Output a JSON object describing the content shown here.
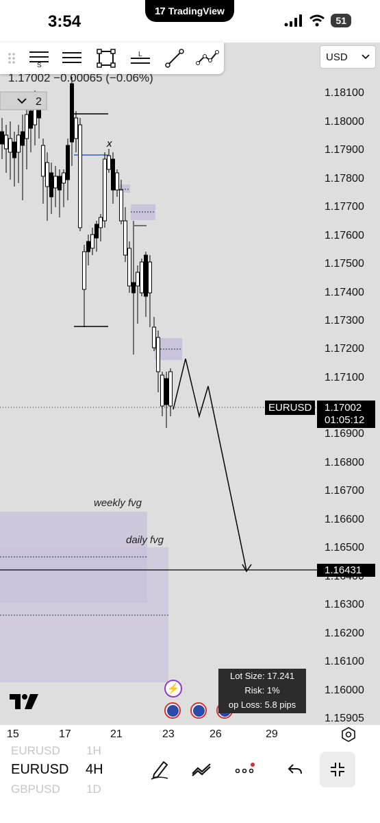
{
  "status_bar": {
    "time": "3:54",
    "app_pill": "TradingView",
    "battery": "51"
  },
  "toolbar": {
    "tools": [
      "drag-handle-icon",
      "s-levels-icon",
      "lines-icon",
      "rectangle-icon",
      "l-levels-icon",
      "trendline-icon",
      "path-icon"
    ]
  },
  "currency_select": {
    "value": "USD"
  },
  "legend": {
    "ohlc_text": "1.17002 −0.00065 (−0.06%)",
    "collapse_count": "2"
  },
  "price_axis": {
    "labels": [
      "1.18100",
      "1.18000",
      "1.17900",
      "1.17800",
      "1.17700",
      "1.17600",
      "1.17500",
      "1.17400",
      "1.17300",
      "1.17200",
      "1.17100",
      "1.16900",
      "1.16800",
      "1.16700",
      "1.16600",
      "1.16500",
      "1.16400",
      "1.16300",
      "1.16200",
      "1.16100",
      "1.16000",
      "1.15905"
    ]
  },
  "current_price": {
    "symbol": "EURUSD",
    "price": "1.17002",
    "countdown": "01:05:12"
  },
  "target_price": {
    "price": "1.16431"
  },
  "annotations": {
    "x_mark": "x",
    "weekly_fvg": "weekly fvg",
    "daily_fvg": "daily fvg"
  },
  "position_box": {
    "lot_size": "Lot Size: 17.241",
    "risk": "Risk: 1%",
    "stop_loss": "op Loss: 5.8 pips"
  },
  "date_axis": {
    "labels": [
      "15",
      "17",
      "21",
      "23",
      "26",
      "29"
    ]
  },
  "bottom_bar": {
    "symbols": [
      {
        "name": "EURUSD",
        "interval": "1H",
        "active": false
      },
      {
        "name": "EURUSD",
        "interval": "4H",
        "active": true
      },
      {
        "name": "GBPUSD",
        "interval": "1D",
        "active": false
      }
    ]
  },
  "colors": {
    "chart_bg": "#dedede",
    "fvg": "#c8c0dc",
    "accent_blue": "#2d5bd6",
    "alert_red": "#d23030"
  }
}
